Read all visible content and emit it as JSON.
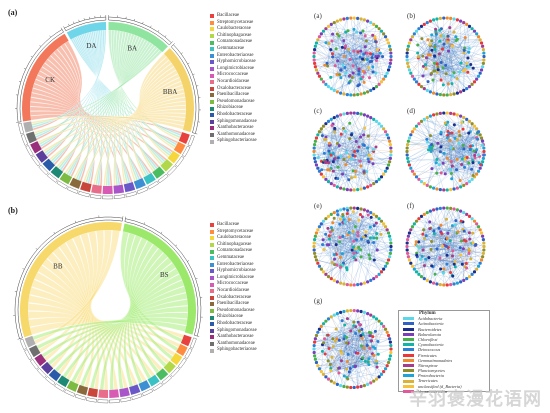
{
  "panels": {
    "a": "(a)",
    "b": "(b)"
  },
  "chordA": {
    "sectors": [
      {
        "label": "CK",
        "color": "#f2775b"
      },
      {
        "label": "DA",
        "color": "#6fd6ea"
      },
      {
        "label": "BA",
        "color": "#8fe5a0"
      },
      {
        "label": "BBA",
        "color": "#f5d36b"
      }
    ],
    "link_colors": [
      "#f28b6e",
      "#7ed8e8",
      "#9be6a8",
      "#f7db85"
    ]
  },
  "chordB": {
    "sectors": [
      {
        "label": "BB",
        "color": "#f7d86a"
      },
      {
        "label": "BS",
        "color": "#9be86a"
      }
    ],
    "link_colors": [
      "#f9e08a",
      "#a8ec7c"
    ]
  },
  "legendA": {
    "items": [
      {
        "label": "Bacillaceae",
        "color": "#e8423e"
      },
      {
        "label": "Streptomycetaceae",
        "color": "#ff8c3e"
      },
      {
        "label": "Caulobacteraceae",
        "color": "#f5d63b"
      },
      {
        "label": "Chitinophagaceae",
        "color": "#b0d848"
      },
      {
        "label": "Comamonadaceae",
        "color": "#4cbc61"
      },
      {
        "label": "Gemmataceae",
        "color": "#39c1c4"
      },
      {
        "label": "Enterobacteriaceae",
        "color": "#3d8fd4"
      },
      {
        "label": "Hyphomicrobiaceae",
        "color": "#6a58c9"
      },
      {
        "label": "Longimicrobiaceae",
        "color": "#a954c9"
      },
      {
        "label": "Micrococcaceae",
        "color": "#d85bb3"
      },
      {
        "label": "Nocardioidaceae",
        "color": "#e86d8a"
      },
      {
        "label": "Oxalobacteraceae",
        "color": "#c9463d"
      },
      {
        "label": "Paenibacillaceae",
        "color": "#8a6a3d"
      },
      {
        "label": "Pseudomonadaceae",
        "color": "#7cbb41"
      },
      {
        "label": "Rhizobiaceae",
        "color": "#1e8a76"
      },
      {
        "label": "Rhodobacteraceae",
        "color": "#2a5ba8"
      },
      {
        "label": "Sphingomonadaceae",
        "color": "#5b3f9c"
      },
      {
        "label": "Xanthobacteraceae",
        "color": "#9a2f7b"
      },
      {
        "label": "Xanthomonadaceae",
        "color": "#6f6f6f"
      },
      {
        "label": "Sphingobacteriaceae",
        "color": "#b0b0b0"
      }
    ]
  },
  "legendB": {
    "items": [
      {
        "label": "Bacillaceae",
        "color": "#e8423e"
      },
      {
        "label": "Streptomycetaceae",
        "color": "#ff8c3e"
      },
      {
        "label": "Caulobacteraceae",
        "color": "#f5d63b"
      },
      {
        "label": "Chitinophagaceae",
        "color": "#b0d848"
      },
      {
        "label": "Comamonadaceae",
        "color": "#4cbc61"
      },
      {
        "label": "Gemmataceae",
        "color": "#39c1c4"
      },
      {
        "label": "Enterobacteriaceae",
        "color": "#3d8fd4"
      },
      {
        "label": "Hyphomicrobiaceae",
        "color": "#6a58c9"
      },
      {
        "label": "Longimicrobiaceae",
        "color": "#a954c9"
      },
      {
        "label": "Micrococcaceae",
        "color": "#d85bb3"
      },
      {
        "label": "Nocardioidaceae",
        "color": "#e86d8a"
      },
      {
        "label": "Oxalobacteraceae",
        "color": "#c9463d"
      },
      {
        "label": "Paenibacillaceae",
        "color": "#8a6a3d"
      },
      {
        "label": "Pseudomonadaceae",
        "color": "#7cbb41"
      },
      {
        "label": "Rhizobiaceae",
        "color": "#1e8a76"
      },
      {
        "label": "Rhodobacteraceae",
        "color": "#2a5ba8"
      },
      {
        "label": "Sphingomonadaceae",
        "color": "#5b3f9c"
      },
      {
        "label": "Xanthobacteraceae",
        "color": "#9a2f7b"
      },
      {
        "label": "Xanthomonadaceae",
        "color": "#6f6f6f"
      },
      {
        "label": "Sphingobacteriaceae",
        "color": "#b0b0b0"
      }
    ]
  },
  "networks": [
    {
      "label": "(a)"
    },
    {
      "label": "(b)"
    },
    {
      "label": "(c)"
    },
    {
      "label": "(d)"
    },
    {
      "label": "(e)"
    },
    {
      "label": "(f)"
    },
    {
      "label": "(g)"
    }
  ],
  "phylum_legend": {
    "title": "Phylum",
    "items": [
      {
        "label": "Acidobacteria",
        "color": "#5ad7e8"
      },
      {
        "label": "Actinobacteria",
        "color": "#2f62c4"
      },
      {
        "label": "Bacteroidetes",
        "color": "#1a2e8c"
      },
      {
        "label": "Balneolaeota",
        "color": "#7b3fb8"
      },
      {
        "label": "Chloroflexi",
        "color": "#46b04a"
      },
      {
        "label": "Cyanobacteria",
        "color": "#12b3a8"
      },
      {
        "label": "Deinococcus",
        "color": "#2b7fd6"
      },
      {
        "label": "Firmicutes",
        "color": "#e8383a"
      },
      {
        "label": "Gemmatimonadetes",
        "color": "#f08a2c"
      },
      {
        "label": "Nitrospirae",
        "color": "#a63d8c"
      },
      {
        "label": "Planctomycetes",
        "color": "#8f8f2a"
      },
      {
        "label": "Proteobacteria",
        "color": "#1fa4d8"
      },
      {
        "label": "Tenericutes",
        "color": "#d9b23a"
      },
      {
        "label": "unclassified (d_Bacteria)",
        "color": "#f5c23a"
      },
      {
        "label": "Verrucomicrobia",
        "color": "#e05a9a"
      }
    ]
  },
  "watermark": "辛羽褒漫花语网"
}
